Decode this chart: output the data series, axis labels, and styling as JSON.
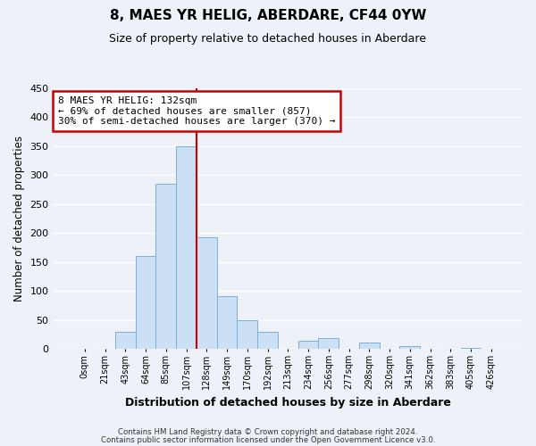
{
  "title": "8, MAES YR HELIG, ABERDARE, CF44 0YW",
  "subtitle": "Size of property relative to detached houses in Aberdare",
  "xlabel": "Distribution of detached houses by size in Aberdare",
  "ylabel": "Number of detached properties",
  "bar_labels": [
    "0sqm",
    "21sqm",
    "43sqm",
    "64sqm",
    "85sqm",
    "107sqm",
    "128sqm",
    "149sqm",
    "170sqm",
    "192sqm",
    "213sqm",
    "234sqm",
    "256sqm",
    "277sqm",
    "298sqm",
    "320sqm",
    "341sqm",
    "362sqm",
    "383sqm",
    "405sqm",
    "426sqm"
  ],
  "bar_values": [
    0,
    0,
    30,
    160,
    285,
    350,
    192,
    91,
    50,
    30,
    0,
    14,
    19,
    0,
    11,
    0,
    5,
    0,
    0,
    1,
    0
  ],
  "bar_color": "#cce0f5",
  "bar_edge_color": "#7ab0d8",
  "property_line_color": "#cc0000",
  "annotation_title": "8 MAES YR HELIG: 132sqm",
  "annotation_line1": "← 69% of detached houses are smaller (857)",
  "annotation_line2": "30% of semi-detached houses are larger (370) →",
  "annotation_box_color": "#ffffff",
  "annotation_box_edge_color": "#cc0000",
  "ylim": [
    0,
    450
  ],
  "yticks": [
    0,
    50,
    100,
    150,
    200,
    250,
    300,
    350,
    400,
    450
  ],
  "footer_line1": "Contains HM Land Registry data © Crown copyright and database right 2024.",
  "footer_line2": "Contains public sector information licensed under the Open Government Licence v3.0.",
  "background_color": "#eef2f8",
  "grid_color": "#ffffff"
}
